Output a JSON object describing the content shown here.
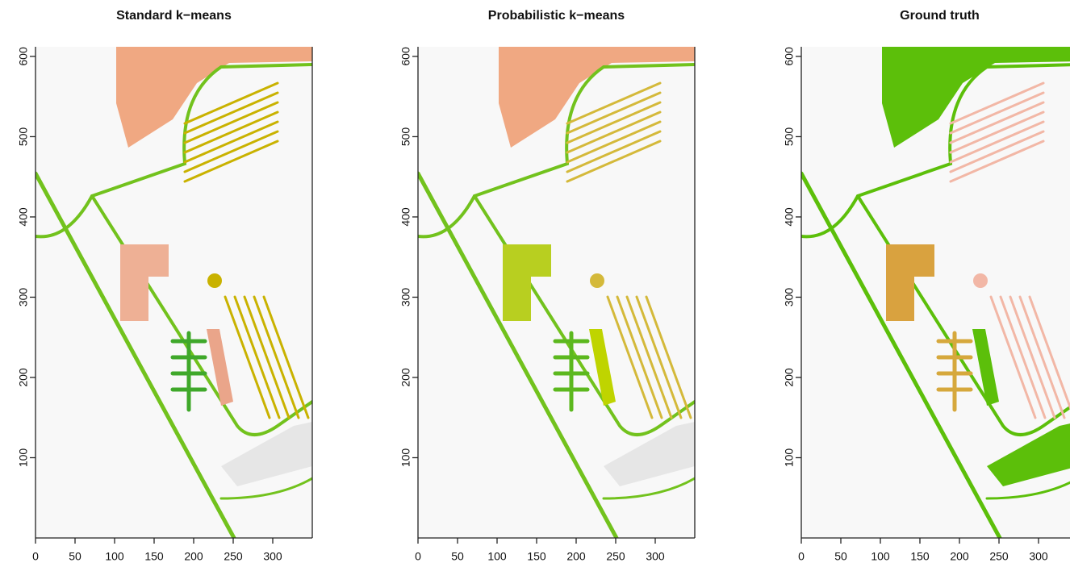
{
  "chart_data": [
    {
      "type": "image",
      "title": "Standard k−means",
      "xlim": [
        0,
        350
      ],
      "ylim": [
        0,
        612
      ],
      "xticks": [
        0,
        50,
        100,
        150,
        200,
        250,
        300
      ],
      "yticks": [
        100,
        200,
        300,
        400,
        500,
        600
      ]
    },
    {
      "type": "image",
      "title": "Probabilistic k−means",
      "xlim": [
        0,
        350
      ],
      "ylim": [
        0,
        612
      ],
      "xticks": [
        0,
        50,
        100,
        150,
        200,
        250,
        300
      ],
      "yticks": [
        100,
        200,
        300,
        400,
        500,
        600
      ]
    },
    {
      "type": "image",
      "title": "Ground truth",
      "xlim": [
        0,
        350
      ],
      "ylim": [
        0,
        612
      ],
      "xticks": [
        0,
        50,
        100,
        150,
        200,
        250,
        300
      ],
      "yticks": [
        100,
        200,
        300,
        400,
        500,
        600
      ]
    }
  ]
}
